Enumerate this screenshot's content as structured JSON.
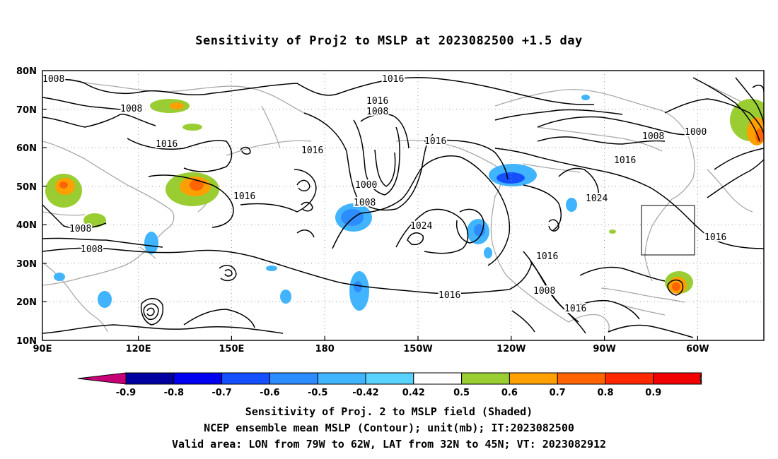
{
  "title": "Sensitivity of Proj2 to MSLP at 2023082500 +1.5 day",
  "map": {
    "lat_ticks": [
      "10N",
      "20N",
      "30N",
      "40N",
      "50N",
      "60N",
      "70N",
      "80N"
    ],
    "lon_ticks": [
      "90E",
      "120E",
      "150E",
      "180",
      "150W",
      "120W",
      "90W",
      "60W"
    ],
    "contour_labels": [
      "1008",
      "1008",
      "1016",
      "1016",
      "1016",
      "1008",
      "1016",
      "1016",
      "1000",
      "1008",
      "1024",
      "1016",
      "1008",
      "1016",
      "1016",
      "1000",
      "1016",
      "1024",
      "1008",
      "1008",
      "1016"
    ],
    "valid_box": {
      "lon": [
        -79,
        -62
      ],
      "lat": [
        32,
        45
      ]
    }
  },
  "colorbar": {
    "ticks": [
      "-0.9",
      "-0.8",
      "-0.7",
      "-0.6",
      "-0.5",
      "-0.42",
      "0.42",
      "0.5",
      "0.6",
      "0.7",
      "0.8",
      "0.9"
    ],
    "colors": [
      "#c80078",
      "#0000a0",
      "#0000f0",
      "#1450ff",
      "#2d8cff",
      "#41b4ff",
      "#5ad2ff",
      "#ffffff",
      "#9acd32",
      "#ffa000",
      "#ff6400",
      "#ff2800",
      "#f00000",
      "#ff9cc8"
    ]
  },
  "footer": {
    "line1": "Sensitivity of Proj. 2 to MSLP field (Shaded)",
    "line2": "NCEP ensemble mean MSLP (Contour); unit(mb); IT:2023082500",
    "line3": "Valid area: LON from 79W to 62W, LAT from 32N to 45N; VT: 2023082912"
  }
}
